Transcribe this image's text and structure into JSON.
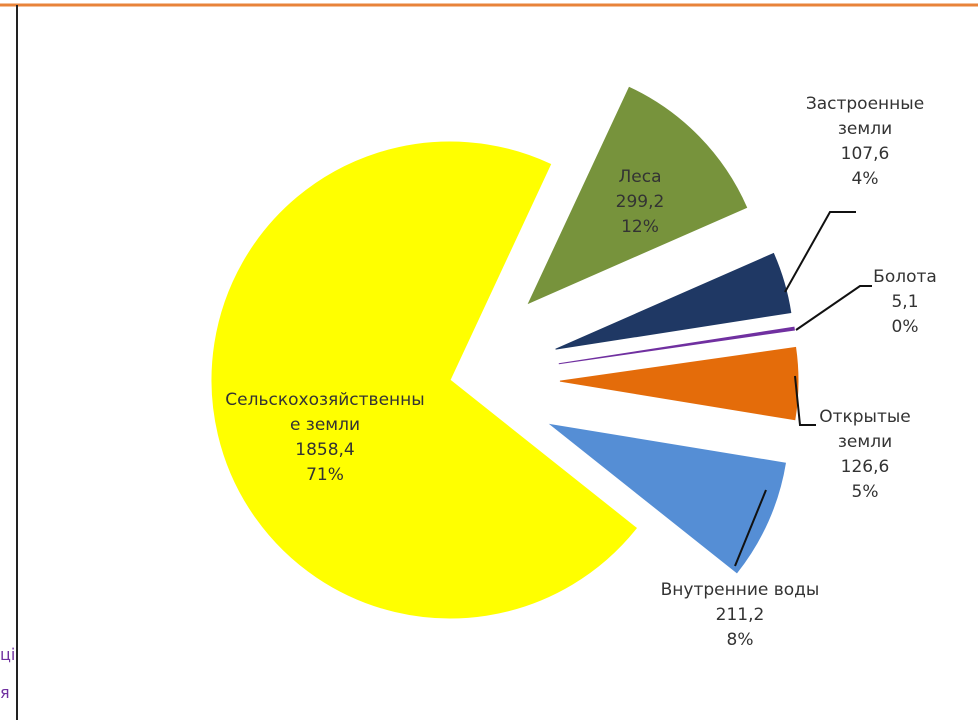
{
  "chart_data": {
    "type": "pie",
    "categories": [
      "Леса",
      "Застроенные земли",
      "Болота",
      "Открытые земли",
      "Внутренние воды",
      "Сельскохозяйственные земли"
    ],
    "values": [
      299.2,
      107.6,
      5.1,
      126.6,
      211.2,
      1858.4
    ],
    "value_labels": [
      "299,2",
      "107,6",
      "5,1",
      "126,6",
      "211,2",
      "1858,4"
    ],
    "percent_labels": [
      "12%",
      "4%",
      "0%",
      "5%",
      "8%",
      "71%"
    ],
    "colors": [
      "#77933c",
      "#1f3864",
      "#7030a0",
      "#e46c0a",
      "#558ed5",
      "#ffff00"
    ]
  },
  "side_text": [
    "ці",
    "я"
  ]
}
